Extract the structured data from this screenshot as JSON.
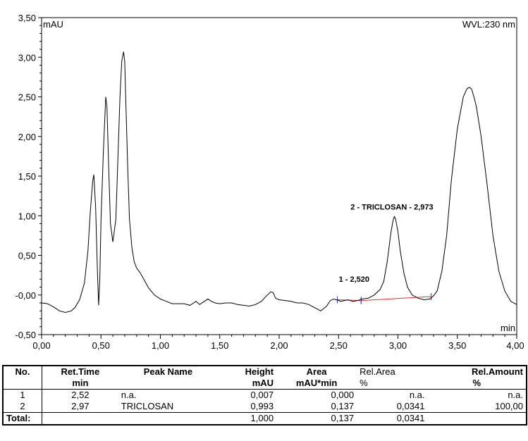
{
  "chart_data": {
    "type": "line",
    "y_unit": "mAU",
    "x_unit": "min",
    "wavelength": "WVL:230 nm",
    "xlim": [
      0.0,
      4.0
    ],
    "ylim": [
      -0.5,
      3.5
    ],
    "x_ticks": [
      "0,00",
      "0,50",
      "1,00",
      "1,50",
      "2,00",
      "2,50",
      "3,00",
      "3,50",
      "4,00"
    ],
    "y_ticks": [
      "-0,50",
      "-0,00",
      "0,50",
      "1,00",
      "1,50",
      "2,00",
      "2,50",
      "3,00",
      "3,50"
    ],
    "series": [
      {
        "x": [
          0.0,
          0.05,
          0.1,
          0.15,
          0.2,
          0.25,
          0.28,
          0.32,
          0.36,
          0.39,
          0.41,
          0.43,
          0.44,
          0.455,
          0.47,
          0.48,
          0.49,
          0.5,
          0.52,
          0.54,
          0.55,
          0.565,
          0.58,
          0.6,
          0.625,
          0.64,
          0.66,
          0.675,
          0.69,
          0.7,
          0.71,
          0.725,
          0.74,
          0.76,
          0.78,
          0.8,
          0.83,
          0.86,
          0.9,
          0.95,
          1.0,
          1.05,
          1.1,
          1.15,
          1.2,
          1.25,
          1.28,
          1.3,
          1.33,
          1.36,
          1.4,
          1.43,
          1.46,
          1.5,
          1.55,
          1.6,
          1.65,
          1.7,
          1.75,
          1.8,
          1.85,
          1.9,
          1.93,
          1.95,
          1.97,
          2.0,
          2.05,
          2.1,
          2.15,
          2.2,
          2.25,
          2.3,
          2.35,
          2.4,
          2.43,
          2.46,
          2.5,
          2.52,
          2.55,
          2.58,
          2.62,
          2.66,
          2.7,
          2.75,
          2.8,
          2.85,
          2.88,
          2.91,
          2.94,
          2.96,
          2.97,
          2.98,
          3.0,
          3.02,
          3.05,
          3.08,
          3.12,
          3.17,
          3.22,
          3.27,
          3.3,
          3.33,
          3.37,
          3.41,
          3.45,
          3.5,
          3.55,
          3.58,
          3.6,
          3.62,
          3.64,
          3.66,
          3.7,
          3.75,
          3.8,
          3.85,
          3.9,
          3.95,
          4.0
        ],
        "y": [
          -0.1,
          -0.11,
          -0.15,
          -0.2,
          -0.22,
          -0.2,
          -0.16,
          -0.06,
          0.15,
          0.55,
          1.05,
          1.44,
          1.52,
          1.1,
          0.3,
          -0.13,
          0.2,
          0.95,
          1.8,
          2.5,
          2.38,
          1.6,
          0.9,
          0.67,
          0.95,
          1.6,
          2.5,
          2.95,
          3.07,
          2.95,
          2.4,
          1.6,
          0.95,
          0.6,
          0.42,
          0.34,
          0.28,
          0.2,
          0.09,
          0.0,
          -0.05,
          -0.08,
          -0.11,
          -0.11,
          -0.11,
          -0.13,
          -0.1,
          -0.08,
          -0.12,
          -0.09,
          -0.05,
          -0.08,
          -0.1,
          -0.11,
          -0.1,
          -0.1,
          -0.12,
          -0.13,
          -0.14,
          -0.12,
          -0.08,
          0.0,
          0.04,
          0.03,
          -0.04,
          -0.06,
          -0.07,
          -0.08,
          -0.1,
          -0.1,
          -0.12,
          -0.16,
          -0.2,
          -0.14,
          -0.07,
          -0.05,
          -0.07,
          -0.08,
          -0.07,
          -0.06,
          -0.08,
          -0.07,
          -0.05,
          -0.04,
          0.0,
          0.07,
          0.17,
          0.42,
          0.78,
          0.95,
          0.99,
          0.96,
          0.8,
          0.55,
          0.28,
          0.1,
          0.0,
          -0.04,
          -0.06,
          -0.05,
          -0.01,
          0.05,
          0.3,
          0.75,
          1.45,
          2.1,
          2.5,
          2.6,
          2.62,
          2.6,
          2.5,
          2.38,
          2.0,
          1.4,
          0.75,
          0.3,
          0.05,
          -0.08,
          -0.12
        ]
      }
    ],
    "baselines": [
      {
        "x": [
          2.49,
          2.69
        ],
        "y": [
          -0.06,
          -0.07
        ]
      },
      {
        "x": [
          2.69,
          3.28
        ],
        "y": [
          -0.07,
          -0.02
        ]
      }
    ],
    "annotations": [
      {
        "text": "1 - 2,520",
        "x": 2.52,
        "y": 0.007
      },
      {
        "text": "2 - TRICLOSAN - 2,973",
        "x": 2.973,
        "y": 0.993
      }
    ],
    "colors": {
      "trace": "#000000",
      "baseline": "#e03030",
      "marker": "#2040c0"
    }
  },
  "table": {
    "headers": {
      "no": "No.",
      "ret_time": "Ret.Time",
      "ret_time_unit": "min",
      "peak_name": "Peak Name",
      "height": "Height",
      "height_unit": "mAU",
      "area": "Area",
      "area_unit": "mAU*min",
      "rel_area": "Rel.Area",
      "rel_area_unit": "%",
      "rel_amount": "Rel.Amount",
      "rel_amount_unit": "%"
    },
    "rows": [
      {
        "no": "1",
        "ret_time": "2,52",
        "peak_name": "n.a.",
        "height": "0,007",
        "area": "0,000",
        "rel_area": "n.a.",
        "rel_amount": "n.a."
      },
      {
        "no": "2",
        "ret_time": "2,97",
        "peak_name": "TRICLOSAN",
        "height": "0,993",
        "area": "0,137",
        "rel_area": "0,0341",
        "rel_amount": "100,00"
      }
    ],
    "total": {
      "label": "Total:",
      "height": "1,000",
      "area": "0,137",
      "rel_area": "0,0341"
    }
  }
}
